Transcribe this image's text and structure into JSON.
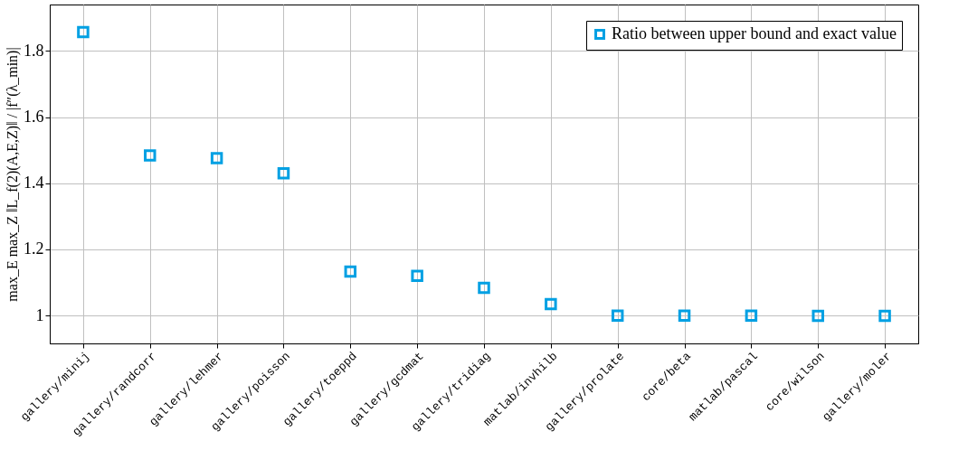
{
  "chart_data": {
    "type": "scatter",
    "categories": [
      "gallery/minij",
      "gallery/randcorr",
      "gallery/lehmer",
      "gallery/poisson",
      "gallery/toeppd",
      "gallery/gcdmat",
      "gallery/tridiag",
      "matlab/invhilb",
      "gallery/prolate",
      "core/beta",
      "matlab/pascal",
      "core/wilson",
      "gallery/moler"
    ],
    "series": [
      {
        "name": "Ratio between upper bound and exact value",
        "color": "#00a0e3",
        "values": [
          1.857,
          1.484,
          1.476,
          1.43,
          1.133,
          1.12,
          1.084,
          1.035,
          1.0,
          1.0,
          1.0,
          0.999,
          0.999
        ]
      }
    ],
    "ylabel": "max_E max_Z ‖L_f(2)(A,E,Z)‖ / |f″(λ_min)|",
    "ylim": [
      0.916,
      1.94
    ],
    "yticks": [
      1,
      1.2,
      1.4,
      1.6,
      1.8
    ],
    "grid": true,
    "legend": "top right",
    "marker": "square"
  }
}
